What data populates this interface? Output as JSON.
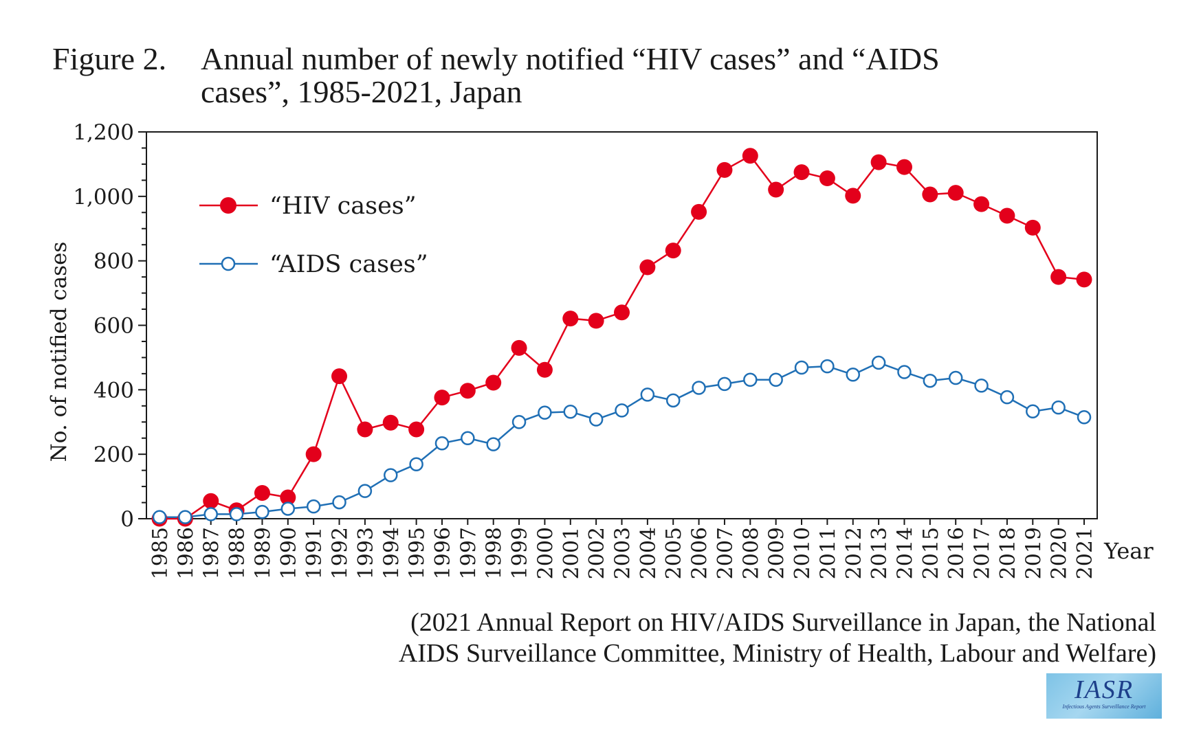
{
  "figure": {
    "number": "Figure 2.",
    "title_line1": "Annual number of newly notified “HIV cases” and “AIDS",
    "title_line2": "cases”, 1985-2021, Japan"
  },
  "source": {
    "line1": "(2021 Annual Report on HIV/AIDS Surveillance in Japan, the National",
    "line2": "AIDS Surveillance Committee, Ministry of Health, Labour and Welfare)"
  },
  "logo": {
    "main": "IASR",
    "sub": "Infectious Agents Surveillance Report"
  },
  "colors": {
    "hiv": "#e3001b",
    "aids": "#1f6fb5",
    "axis": "#1a1a1a"
  },
  "chart_data": {
    "type": "line",
    "title": "Annual number of newly notified “HIV cases” and “AIDS cases”, 1985-2021, Japan",
    "xlabel": "Year",
    "ylabel": "No. of notified cases",
    "ylim": [
      0,
      1200
    ],
    "yticks": [
      0,
      200,
      400,
      600,
      800,
      1000,
      1200
    ],
    "ytick_labels": [
      "0",
      "200",
      "400",
      "600",
      "800",
      "1,000",
      "1,200"
    ],
    "legend_position": "top-left",
    "grid": false,
    "categories": [
      "1985",
      "1986",
      "1987",
      "1988",
      "1989",
      "1990",
      "1991",
      "1992",
      "1993",
      "1994",
      "1995",
      "1996",
      "1997",
      "1998",
      "1999",
      "2000",
      "2001",
      "2002",
      "2003",
      "2004",
      "2005",
      "2006",
      "2007",
      "2008",
      "2009",
      "2010",
      "2011",
      "2012",
      "2013",
      "2014",
      "2015",
      "2016",
      "2017",
      "2018",
      "2019",
      "2020",
      "2021"
    ],
    "series": [
      {
        "name": "“HIV cases”",
        "marker": "filled-circle",
        "color": "#e3001b",
        "values": [
          0,
          0,
          55,
          26,
          80,
          66,
          200,
          442,
          277,
          298,
          277,
          376,
          397,
          422,
          530,
          462,
          621,
          614,
          640,
          780,
          832,
          952,
          1082,
          1126,
          1021,
          1075,
          1056,
          1002,
          1106,
          1091,
          1006,
          1011,
          976,
          940,
          903,
          750,
          742
        ]
      },
      {
        "name": "“AIDS cases”",
        "marker": "open-circle",
        "color": "#1f6fb5",
        "values": [
          5,
          5,
          14,
          14,
          21,
          31,
          38,
          51,
          86,
          135,
          169,
          234,
          250,
          231,
          300,
          329,
          332,
          308,
          336,
          385,
          367,
          406,
          418,
          431,
          431,
          469,
          473,
          447,
          484,
          455,
          428,
          437,
          413,
          377,
          333,
          345,
          315
        ]
      }
    ]
  }
}
